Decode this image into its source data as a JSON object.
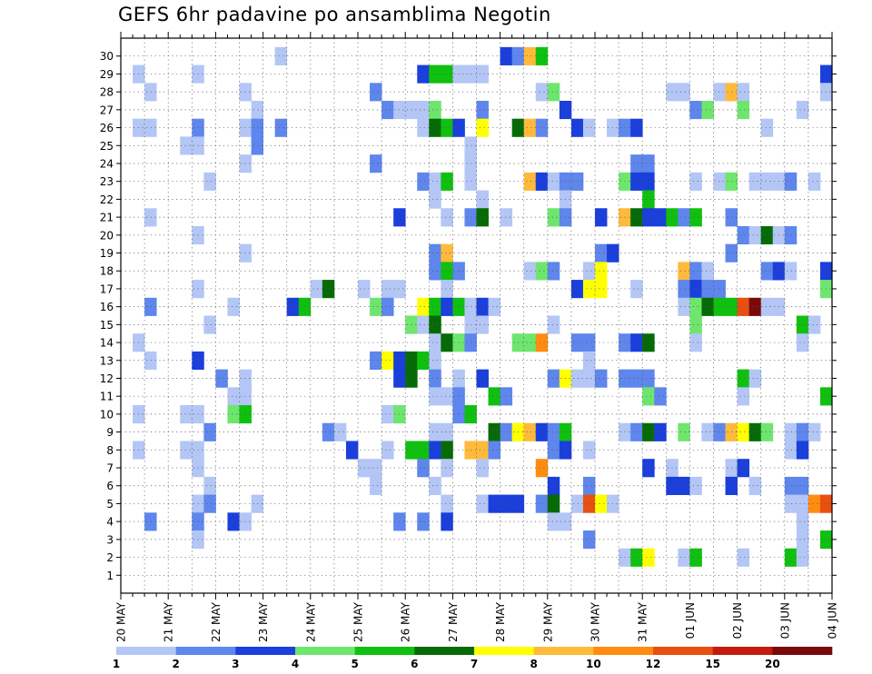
{
  "chart_data": {
    "type": "heatmap",
    "title": "GEFS 6hr padavine po ansamblima Negotin",
    "xlabel": "",
    "ylabel": "",
    "x_ticks": [
      "20 MAY",
      "21 MAY",
      "22 MAY",
      "23 MAY",
      "24 MAY",
      "25 MAY",
      "26 MAY",
      "27 MAY",
      "28 MAY",
      "29 MAY",
      "30 MAY",
      "31 MAY",
      "01 JUN",
      "02 JUN",
      "03 JUN",
      "04 JUN"
    ],
    "x_steps_per_day": 4,
    "x_steps": 60,
    "y_members": [
      1,
      30
    ],
    "grid": true,
    "colorbar": {
      "labels": [
        "1",
        "2",
        "3",
        "4",
        "5",
        "6",
        "7",
        "8",
        "10",
        "12",
        "15",
        "20"
      ],
      "colors": [
        "#b3c6f5",
        "#5e86ec",
        "#1a3fdb",
        "#6ee66e",
        "#10c010",
        "#066b06",
        "#ffff00",
        "#ffba3c",
        "#ff8c10",
        "#e84f10",
        "#c41a10",
        "#7a0a0a"
      ]
    },
    "cells": [
      [
        30,
        13,
        0
      ],
      [
        30,
        32,
        2
      ],
      [
        30,
        33,
        1
      ],
      [
        30,
        34,
        7
      ],
      [
        30,
        35,
        4
      ],
      [
        29,
        1,
        0
      ],
      [
        29,
        6,
        0
      ],
      [
        29,
        25,
        2
      ],
      [
        29,
        26,
        4
      ],
      [
        29,
        27,
        4
      ],
      [
        29,
        28,
        0
      ],
      [
        29,
        29,
        0
      ],
      [
        29,
        30,
        0
      ],
      [
        29,
        59,
        2
      ],
      [
        28,
        2,
        0
      ],
      [
        28,
        10,
        0
      ],
      [
        28,
        21,
        1
      ],
      [
        28,
        35,
        0
      ],
      [
        28,
        36,
        3
      ],
      [
        28,
        46,
        0
      ],
      [
        28,
        47,
        0
      ],
      [
        28,
        50,
        0
      ],
      [
        28,
        51,
        7
      ],
      [
        28,
        52,
        0
      ],
      [
        28,
        59,
        0
      ],
      [
        27,
        11,
        0
      ],
      [
        27,
        22,
        1
      ],
      [
        27,
        23,
        0
      ],
      [
        27,
        24,
        0
      ],
      [
        27,
        25,
        0
      ],
      [
        27,
        26,
        3
      ],
      [
        27,
        30,
        1
      ],
      [
        27,
        37,
        2
      ],
      [
        27,
        48,
        1
      ],
      [
        27,
        49,
        3
      ],
      [
        27,
        52,
        3
      ],
      [
        27,
        57,
        0
      ],
      [
        26,
        1,
        0
      ],
      [
        26,
        2,
        0
      ],
      [
        26,
        6,
        1
      ],
      [
        26,
        10,
        0
      ],
      [
        26,
        11,
        1
      ],
      [
        26,
        13,
        1
      ],
      [
        26,
        25,
        0
      ],
      [
        26,
        26,
        5
      ],
      [
        26,
        27,
        4
      ],
      [
        26,
        28,
        2
      ],
      [
        26,
        30,
        6
      ],
      [
        26,
        33,
        5
      ],
      [
        26,
        34,
        7
      ],
      [
        26,
        35,
        1
      ],
      [
        26,
        38,
        2
      ],
      [
        26,
        39,
        0
      ],
      [
        26,
        41,
        0
      ],
      [
        26,
        42,
        1
      ],
      [
        26,
        43,
        2
      ],
      [
        26,
        54,
        0
      ],
      [
        25,
        5,
        0
      ],
      [
        25,
        6,
        0
      ],
      [
        25,
        11,
        1
      ],
      [
        25,
        29,
        0
      ],
      [
        24,
        10,
        0
      ],
      [
        24,
        21,
        1
      ],
      [
        24,
        29,
        0
      ],
      [
        24,
        43,
        1
      ],
      [
        24,
        44,
        1
      ],
      [
        23,
        7,
        0
      ],
      [
        23,
        25,
        1
      ],
      [
        23,
        26,
        0
      ],
      [
        23,
        27,
        4
      ],
      [
        23,
        29,
        0
      ],
      [
        23,
        34,
        7
      ],
      [
        23,
        35,
        2
      ],
      [
        23,
        36,
        0
      ],
      [
        23,
        37,
        1
      ],
      [
        23,
        38,
        1
      ],
      [
        23,
        42,
        3
      ],
      [
        23,
        43,
        2
      ],
      [
        23,
        44,
        2
      ],
      [
        23,
        48,
        0
      ],
      [
        23,
        50,
        0
      ],
      [
        23,
        51,
        3
      ],
      [
        23,
        53,
        0
      ],
      [
        23,
        54,
        0
      ],
      [
        23,
        55,
        0
      ],
      [
        23,
        56,
        1
      ],
      [
        23,
        58,
        0
      ],
      [
        22,
        26,
        0
      ],
      [
        22,
        30,
        0
      ],
      [
        22,
        37,
        0
      ],
      [
        22,
        44,
        4
      ],
      [
        21,
        2,
        0
      ],
      [
        21,
        23,
        2
      ],
      [
        21,
        27,
        0
      ],
      [
        21,
        29,
        1
      ],
      [
        21,
        30,
        5
      ],
      [
        21,
        32,
        0
      ],
      [
        21,
        36,
        3
      ],
      [
        21,
        37,
        1
      ],
      [
        21,
        40,
        2
      ],
      [
        21,
        42,
        7
      ],
      [
        21,
        43,
        5
      ],
      [
        21,
        44,
        2
      ],
      [
        21,
        45,
        2
      ],
      [
        21,
        46,
        4
      ],
      [
        21,
        47,
        1
      ],
      [
        21,
        48,
        4
      ],
      [
        21,
        51,
        1
      ],
      [
        20,
        6,
        0
      ],
      [
        20,
        52,
        1
      ],
      [
        20,
        53,
        0
      ],
      [
        20,
        54,
        5
      ],
      [
        20,
        55,
        0
      ],
      [
        20,
        56,
        1
      ],
      [
        19,
        10,
        0
      ],
      [
        19,
        26,
        1
      ],
      [
        19,
        27,
        7
      ],
      [
        19,
        40,
        1
      ],
      [
        19,
        41,
        2
      ],
      [
        19,
        51,
        1
      ],
      [
        18,
        26,
        1
      ],
      [
        18,
        27,
        4
      ],
      [
        18,
        28,
        1
      ],
      [
        18,
        34,
        0
      ],
      [
        18,
        35,
        3
      ],
      [
        18,
        36,
        1
      ],
      [
        18,
        39,
        0
      ],
      [
        18,
        40,
        6
      ],
      [
        18,
        47,
        7
      ],
      [
        18,
        48,
        1
      ],
      [
        18,
        49,
        0
      ],
      [
        18,
        54,
        1
      ],
      [
        18,
        55,
        2
      ],
      [
        18,
        56,
        0
      ],
      [
        18,
        59,
        2
      ],
      [
        17,
        6,
        0
      ],
      [
        17,
        16,
        0
      ],
      [
        17,
        17,
        5
      ],
      [
        17,
        20,
        0
      ],
      [
        17,
        22,
        0
      ],
      [
        17,
        23,
        0
      ],
      [
        17,
        27,
        0
      ],
      [
        17,
        38,
        2
      ],
      [
        17,
        39,
        6
      ],
      [
        17,
        40,
        6
      ],
      [
        17,
        43,
        0
      ],
      [
        17,
        47,
        1
      ],
      [
        17,
        48,
        2
      ],
      [
        17,
        49,
        1
      ],
      [
        17,
        50,
        1
      ],
      [
        17,
        59,
        3
      ],
      [
        16,
        2,
        1
      ],
      [
        16,
        9,
        0
      ],
      [
        16,
        14,
        2
      ],
      [
        16,
        15,
        4
      ],
      [
        16,
        21,
        3
      ],
      [
        16,
        22,
        1
      ],
      [
        16,
        25,
        6
      ],
      [
        16,
        26,
        4
      ],
      [
        16,
        27,
        2
      ],
      [
        16,
        28,
        4
      ],
      [
        16,
        29,
        0
      ],
      [
        16,
        30,
        2
      ],
      [
        16,
        31,
        0
      ],
      [
        16,
        47,
        0
      ],
      [
        16,
        48,
        3
      ],
      [
        16,
        49,
        5
      ],
      [
        16,
        50,
        4
      ],
      [
        16,
        51,
        4
      ],
      [
        16,
        52,
        9
      ],
      [
        16,
        53,
        11
      ],
      [
        16,
        54,
        0
      ],
      [
        16,
        55,
        0
      ],
      [
        15,
        7,
        0
      ],
      [
        15,
        24,
        3
      ],
      [
        15,
        25,
        0
      ],
      [
        15,
        26,
        5
      ],
      [
        15,
        29,
        0
      ],
      [
        15,
        30,
        0
      ],
      [
        15,
        36,
        0
      ],
      [
        15,
        48,
        3
      ],
      [
        15,
        57,
        4
      ],
      [
        15,
        58,
        0
      ],
      [
        14,
        1,
        0
      ],
      [
        14,
        26,
        0
      ],
      [
        14,
        27,
        5
      ],
      [
        14,
        28,
        3
      ],
      [
        14,
        29,
        1
      ],
      [
        14,
        33,
        3
      ],
      [
        14,
        34,
        3
      ],
      [
        14,
        35,
        8
      ],
      [
        14,
        38,
        1
      ],
      [
        14,
        39,
        1
      ],
      [
        14,
        42,
        1
      ],
      [
        14,
        43,
        2
      ],
      [
        14,
        44,
        5
      ],
      [
        14,
        48,
        0
      ],
      [
        14,
        57,
        0
      ],
      [
        13,
        2,
        0
      ],
      [
        13,
        6,
        2
      ],
      [
        13,
        21,
        1
      ],
      [
        13,
        22,
        6
      ],
      [
        13,
        23,
        2
      ],
      [
        13,
        24,
        5
      ],
      [
        13,
        25,
        4
      ],
      [
        13,
        26,
        0
      ],
      [
        13,
        39,
        0
      ],
      [
        12,
        8,
        1
      ],
      [
        12,
        10,
        0
      ],
      [
        12,
        23,
        2
      ],
      [
        12,
        24,
        5
      ],
      [
        12,
        26,
        1
      ],
      [
        12,
        28,
        0
      ],
      [
        12,
        30,
        2
      ],
      [
        12,
        36,
        1
      ],
      [
        12,
        37,
        6
      ],
      [
        12,
        38,
        0
      ],
      [
        12,
        39,
        0
      ],
      [
        12,
        40,
        1
      ],
      [
        12,
        42,
        1
      ],
      [
        12,
        43,
        1
      ],
      [
        12,
        44,
        1
      ],
      [
        12,
        52,
        4
      ],
      [
        12,
        53,
        0
      ],
      [
        11,
        9,
        0
      ],
      [
        11,
        10,
        0
      ],
      [
        11,
        26,
        0
      ],
      [
        11,
        27,
        0
      ],
      [
        11,
        28,
        1
      ],
      [
        11,
        31,
        4
      ],
      [
        11,
        32,
        1
      ],
      [
        11,
        44,
        3
      ],
      [
        11,
        45,
        1
      ],
      [
        11,
        52,
        0
      ],
      [
        11,
        59,
        4
      ],
      [
        10,
        1,
        0
      ],
      [
        10,
        5,
        0
      ],
      [
        10,
        6,
        0
      ],
      [
        10,
        9,
        3
      ],
      [
        10,
        10,
        4
      ],
      [
        10,
        22,
        0
      ],
      [
        10,
        23,
        3
      ],
      [
        10,
        28,
        1
      ],
      [
        10,
        29,
        4
      ],
      [
        9,
        7,
        1
      ],
      [
        9,
        17,
        1
      ],
      [
        9,
        18,
        0
      ],
      [
        9,
        26,
        0
      ],
      [
        9,
        27,
        0
      ],
      [
        9,
        31,
        5
      ],
      [
        9,
        32,
        1
      ],
      [
        9,
        33,
        6
      ],
      [
        9,
        34,
        7
      ],
      [
        9,
        35,
        2
      ],
      [
        9,
        36,
        1
      ],
      [
        9,
        37,
        4
      ],
      [
        9,
        42,
        0
      ],
      [
        9,
        43,
        1
      ],
      [
        9,
        44,
        5
      ],
      [
        9,
        45,
        2
      ],
      [
        9,
        47,
        3
      ],
      [
        9,
        49,
        0
      ],
      [
        9,
        50,
        1
      ],
      [
        9,
        51,
        7
      ],
      [
        9,
        52,
        6
      ],
      [
        9,
        53,
        5
      ],
      [
        9,
        54,
        3
      ],
      [
        9,
        56,
        0
      ],
      [
        9,
        57,
        1
      ],
      [
        9,
        58,
        0
      ],
      [
        8,
        1,
        0
      ],
      [
        8,
        5,
        0
      ],
      [
        8,
        6,
        0
      ],
      [
        8,
        19,
        2
      ],
      [
        8,
        22,
        0
      ],
      [
        8,
        24,
        4
      ],
      [
        8,
        25,
        4
      ],
      [
        8,
        26,
        2
      ],
      [
        8,
        27,
        5
      ],
      [
        8,
        29,
        7
      ],
      [
        8,
        30,
        7
      ],
      [
        8,
        31,
        1
      ],
      [
        8,
        36,
        1
      ],
      [
        8,
        37,
        2
      ],
      [
        8,
        39,
        0
      ],
      [
        8,
        56,
        0
      ],
      [
        8,
        57,
        2
      ],
      [
        7,
        6,
        0
      ],
      [
        7,
        20,
        0
      ],
      [
        7,
        21,
        0
      ],
      [
        7,
        25,
        1
      ],
      [
        7,
        27,
        0
      ],
      [
        7,
        30,
        0
      ],
      [
        7,
        35,
        8
      ],
      [
        7,
        44,
        2
      ],
      [
        7,
        46,
        0
      ],
      [
        7,
        51,
        0
      ],
      [
        7,
        52,
        2
      ],
      [
        6,
        7,
        0
      ],
      [
        6,
        21,
        0
      ],
      [
        6,
        26,
        0
      ],
      [
        6,
        36,
        2
      ],
      [
        6,
        39,
        1
      ],
      [
        6,
        46,
        2
      ],
      [
        6,
        47,
        2
      ],
      [
        6,
        48,
        0
      ],
      [
        6,
        51,
        2
      ],
      [
        6,
        53,
        0
      ],
      [
        6,
        56,
        1
      ],
      [
        6,
        57,
        1
      ],
      [
        5,
        6,
        0
      ],
      [
        5,
        7,
        1
      ],
      [
        5,
        11,
        0
      ],
      [
        5,
        27,
        0
      ],
      [
        5,
        30,
        0
      ],
      [
        5,
        31,
        2
      ],
      [
        5,
        32,
        2
      ],
      [
        5,
        33,
        2
      ],
      [
        5,
        35,
        1
      ],
      [
        5,
        36,
        5
      ],
      [
        5,
        38,
        0
      ],
      [
        5,
        39,
        9
      ],
      [
        5,
        40,
        6
      ],
      [
        5,
        41,
        0
      ],
      [
        5,
        56,
        0
      ],
      [
        5,
        57,
        0
      ],
      [
        5,
        58,
        8
      ],
      [
        5,
        59,
        9
      ],
      [
        4,
        2,
        1
      ],
      [
        4,
        6,
        1
      ],
      [
        4,
        9,
        2
      ],
      [
        4,
        10,
        0
      ],
      [
        4,
        23,
        1
      ],
      [
        4,
        25,
        1
      ],
      [
        4,
        27,
        2
      ],
      [
        4,
        36,
        0
      ],
      [
        4,
        37,
        0
      ],
      [
        4,
        57,
        0
      ],
      [
        3,
        6,
        0
      ],
      [
        3,
        39,
        1
      ],
      [
        3,
        57,
        0
      ],
      [
        3,
        59,
        4
      ],
      [
        2,
        42,
        0
      ],
      [
        2,
        43,
        4
      ],
      [
        2,
        44,
        6
      ],
      [
        2,
        47,
        0
      ],
      [
        2,
        48,
        4
      ],
      [
        2,
        52,
        0
      ],
      [
        2,
        56,
        4
      ],
      [
        2,
        57,
        0
      ]
    ]
  }
}
